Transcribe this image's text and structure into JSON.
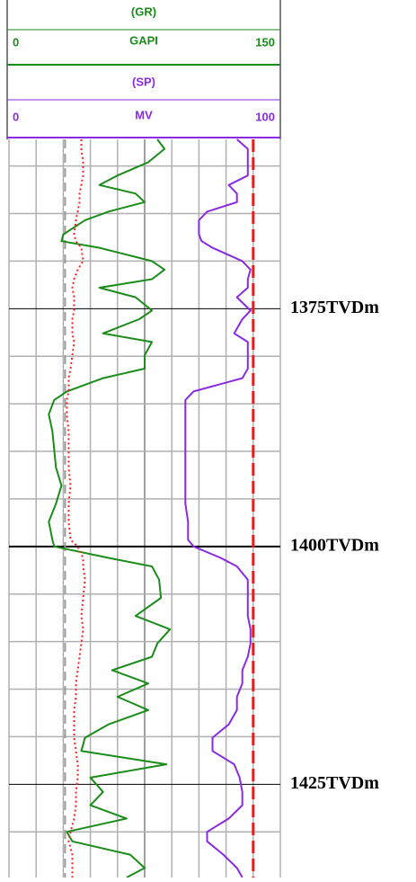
{
  "chart_data": {
    "type": "well-log",
    "tracks": [
      {
        "name": "(GR)",
        "unit": "GAPI",
        "min": 0,
        "max": 150,
        "color": "#1a8c1a"
      },
      {
        "name": "(SP)",
        "unit": "MV",
        "min": 0,
        "max": 100,
        "color": "#8a2be2"
      }
    ],
    "ylim": [
      1357.2,
      1434.8
    ],
    "minor_ticks": [
      1360,
      1365,
      1370,
      1380,
      1385,
      1390,
      1395,
      1405,
      1410,
      1415,
      1420,
      1430
    ],
    "major_ticks": [
      {
        "value": 1375,
        "label": "1375TVDm"
      },
      {
        "value": 1400,
        "label": "1400TVDm"
      },
      {
        "value": 1425,
        "label": "1425TVDm"
      }
    ],
    "xticks": [
      0,
      15,
      30,
      45,
      60,
      75,
      90,
      105,
      120,
      135,
      150
    ],
    "x": [
      1357.2,
      1358.2,
      1359.6,
      1361.0,
      1362.0,
      1362.9,
      1363.8,
      1364.8,
      1365.7,
      1367.2,
      1367.9,
      1368.6,
      1370.0,
      1370.9,
      1371.9,
      1372.8,
      1373.8,
      1375.2,
      1376.1,
      1377.6,
      1378.5,
      1379.9,
      1381.3,
      1382.3,
      1383.7,
      1384.6,
      1386.1,
      1387.9,
      1389.8,
      1391.7,
      1393.6,
      1395.5,
      1397.4,
      1399.3,
      1400,
      1401.2,
      1402.1,
      1403.5,
      1405.4,
      1407.3,
      1408.7,
      1410.2,
      1411.6,
      1413.0,
      1414.4,
      1415.8,
      1417.2,
      1418.7,
      1420.1,
      1421.5,
      1422.9,
      1424.3,
      1425.8,
      1427.2,
      1428.6,
      1430.0,
      1431.0,
      1432.4,
      1433.8,
      1434.8
    ],
    "series": [
      {
        "track": 0,
        "color": "#1a8c1a",
        "values": [
          82,
          86,
          77,
          60,
          50,
          70,
          75,
          55,
          42,
          30,
          29,
          50,
          79,
          86,
          79,
          50,
          70,
          79,
          72,
          52,
          79,
          75,
          75,
          52,
          32,
          25,
          22,
          24,
          25,
          26,
          29,
          26,
          22,
          24,
          25,
          55,
          79,
          83,
          84,
          70,
          89,
          82,
          79,
          57,
          77,
          60,
          77,
          55,
          42,
          40,
          87,
          45,
          52,
          45,
          65,
          32,
          35,
          67,
          75,
          65
        ]
      },
      {
        "track": 0,
        "color": "#ff2020",
        "dash": "dot",
        "values": [
          40,
          40,
          41,
          41,
          40,
          39,
          39,
          38,
          37,
          36,
          37,
          40,
          41,
          38,
          36,
          35,
          36,
          36,
          35,
          35,
          36,
          35,
          34,
          33,
          33,
          32,
          32,
          33,
          33,
          33,
          34,
          33,
          33,
          34,
          38,
          41,
          41,
          42,
          41,
          40,
          41,
          40,
          39,
          38,
          37,
          37,
          36,
          36,
          36,
          37,
          38,
          38,
          37,
          37,
          36,
          34,
          33,
          35,
          35,
          35
        ]
      },
      {
        "track": 1,
        "color": "#8a2be2",
        "values": [
          84,
          88,
          88,
          88,
          81,
          84,
          84,
          73,
          70,
          70,
          71,
          75,
          86,
          89,
          88,
          88,
          84,
          89,
          86,
          83,
          88,
          88,
          88,
          86,
          68,
          65,
          65,
          65,
          65,
          65,
          65,
          65,
          66,
          66,
          68,
          78,
          84,
          88,
          88,
          88,
          89,
          89,
          88,
          86,
          86,
          84,
          84,
          81,
          75,
          75,
          83,
          85,
          86,
          86,
          81,
          73,
          73,
          79,
          84,
          86
        ]
      }
    ],
    "reference_lines": [
      {
        "track": 0,
        "value": 31,
        "color": "#999999"
      },
      {
        "track": 1,
        "value": 90,
        "color": "#e02020"
      }
    ]
  }
}
